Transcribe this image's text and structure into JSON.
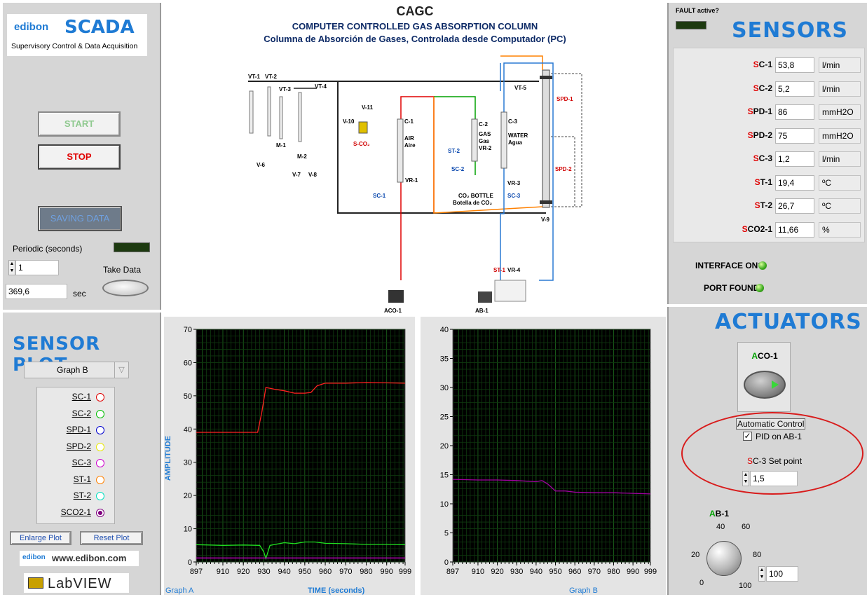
{
  "header": {
    "brand": "edibon",
    "scada": "SCADA",
    "scada_sub": "Supervisory Control & Data Acquisition",
    "code": "CAGC",
    "title_en": "COMPUTER CONTROLLED GAS ABSORPTION COLUMN",
    "title_es": "Columna de Absorción de Gases, Controlada desde Computador (PC)"
  },
  "left": {
    "start_label": "START",
    "stop_label": "STOP",
    "saving_label": "SAVING DATA",
    "periodic_label": "Periodic (seconds)",
    "periodic_value": "1",
    "take_data_label": "Take Data",
    "time_value": "369,6",
    "time_unit": "sec"
  },
  "sensor_plot": {
    "title": "SENSOR PLOT",
    "selected_graph": "Graph B",
    "legend": [
      {
        "name": "SC-1",
        "color": "#e00000",
        "filled": false
      },
      {
        "name": "SC-2",
        "color": "#00c000",
        "filled": false
      },
      {
        "name": "SPD-1",
        "color": "#0000d0",
        "filled": false
      },
      {
        "name": "SPD-2",
        "color": "#e8e800",
        "filled": false
      },
      {
        "name": "SC-3",
        "color": "#d000d0",
        "filled": false
      },
      {
        "name": "ST-1",
        "color": "#ff8000",
        "filled": false
      },
      {
        "name": "ST-2",
        "color": "#00e0c0",
        "filled": false
      },
      {
        "name": "SCO2-1",
        "color": "#800080",
        "filled": true
      }
    ],
    "enlarge_label": "Enlarge Plot",
    "reset_label": "Reset Plot",
    "website": "www.edibon.com",
    "labview": "LabVIEW"
  },
  "sensors": {
    "fault_label": "FAULT active?",
    "title": "SENSORS",
    "rows": [
      {
        "prefix": "S",
        "name": "C-1",
        "value": "53,8",
        "unit": "l/min"
      },
      {
        "prefix": "S",
        "name": "C-2",
        "value": "5,2",
        "unit": "l/min"
      },
      {
        "prefix": "S",
        "name": "PD-1",
        "value": "86",
        "unit": "mmH2O"
      },
      {
        "prefix": "S",
        "name": "PD-2",
        "value": "75",
        "unit": "mmH2O"
      },
      {
        "prefix": "S",
        "name": "C-3",
        "value": "1,2",
        "unit": "l/min"
      },
      {
        "prefix": "S",
        "name": "T-1",
        "value": "19,4",
        "unit": "ºC"
      },
      {
        "prefix": "S",
        "name": "T-2",
        "value": "26,7",
        "unit": "ºC"
      },
      {
        "prefix": "S",
        "name": "CO2-1",
        "value": "11,66",
        "unit": "%"
      }
    ],
    "interface_label": "INTERFACE ON?",
    "port_label": "PORT FOUND"
  },
  "actuators": {
    "title": "ACTUATORS",
    "aco_prefix": "A",
    "aco_name": "CO-1",
    "auto_control_label": "Automatic Control",
    "pid_label": "PID on AB-1",
    "pid_checked": true,
    "setpoint_prefix": "S",
    "setpoint_label": "C-3 Set point",
    "setpoint_value": "1,5",
    "ab_prefix": "A",
    "ab_name": "B-1",
    "knob_value": "100",
    "knob_ticks": [
      "0",
      "20",
      "40",
      "60",
      "80",
      "100"
    ]
  },
  "diagram": {
    "labels": [
      "VT-1",
      "VT-2",
      "VT-3",
      "VT-4",
      "V-11",
      "V-10",
      "S-CO2",
      "M-1",
      "M-2",
      "V-6",
      "V-7",
      "V-8",
      "C-1",
      "AIR",
      "Aire",
      "ST-2",
      "C-2",
      "GAS",
      "Gas",
      "VR-2",
      "SC-2",
      "VR-1",
      "SC-1",
      "C-3",
      "WATER",
      "Agua",
      "VT-5",
      "SPD-1",
      "SPD-2",
      "VR-3",
      "SC-3",
      "CO2 BOTTLE",
      "Botella de CO2",
      "V-9",
      "ST-1",
      "VR-4",
      "ACO-1",
      "AB-1"
    ]
  },
  "graph_a": {
    "title": "Graph A",
    "ylabel": "AMPLITUDE",
    "xlabel": "TIME (seconds)",
    "y_ticks": [
      "0",
      "10",
      "20",
      "30",
      "40",
      "50",
      "60",
      "70"
    ],
    "x_ticks": [
      "897",
      "910",
      "920",
      "930",
      "940",
      "950",
      "960",
      "970",
      "980",
      "990",
      "999"
    ]
  },
  "graph_b": {
    "title": "Graph B",
    "y_ticks": [
      "0",
      "5",
      "10",
      "15",
      "20",
      "25",
      "30",
      "35",
      "40"
    ],
    "x_ticks": [
      "897",
      "910",
      "920",
      "930",
      "940",
      "950",
      "960",
      "970",
      "980",
      "990",
      "999"
    ]
  },
  "chart_data": [
    {
      "type": "line",
      "title": "Graph A",
      "xlabel": "TIME (seconds)",
      "ylabel": "AMPLITUDE",
      "xlim": [
        897,
        999
      ],
      "ylim": [
        0,
        70
      ],
      "grid": true,
      "series": [
        {
          "name": "SC-1",
          "color": "#ff2020",
          "x": [
            897,
            925,
            927,
            929,
            931,
            935,
            940,
            945,
            950,
            953,
            956,
            960,
            970,
            980,
            990,
            999
          ],
          "y": [
            39,
            39,
            39,
            45,
            52.5,
            52,
            51.5,
            50.8,
            50.8,
            51,
            53,
            53.8,
            53.8,
            54,
            53.9,
            53.8
          ]
        },
        {
          "name": "SC-2",
          "color": "#20e020",
          "x": [
            897,
            910,
            920,
            928,
            930,
            931,
            933,
            940,
            945,
            950,
            955,
            960,
            970,
            980,
            990,
            999
          ],
          "y": [
            5.2,
            5,
            5.1,
            5,
            3,
            1,
            5,
            5.8,
            5.5,
            6,
            6,
            5.6,
            5.5,
            5.3,
            5.3,
            5.2
          ]
        },
        {
          "name": "SC-3",
          "color": "#c000c0",
          "x": [
            897,
            999
          ],
          "y": [
            1.2,
            1.2
          ]
        }
      ]
    },
    {
      "type": "line",
      "title": "Graph B",
      "xlim": [
        897,
        999
      ],
      "ylim": [
        0,
        40
      ],
      "grid": true,
      "series": [
        {
          "name": "SCO2-1",
          "color": "#a000a0",
          "x": [
            897,
            910,
            920,
            930,
            940,
            943,
            946,
            950,
            955,
            960,
            970,
            980,
            990,
            999
          ],
          "y": [
            14.2,
            14.1,
            14.1,
            14,
            13.8,
            14,
            13.4,
            12.2,
            12.2,
            12,
            11.9,
            11.9,
            11.8,
            11.7
          ]
        }
      ]
    }
  ]
}
